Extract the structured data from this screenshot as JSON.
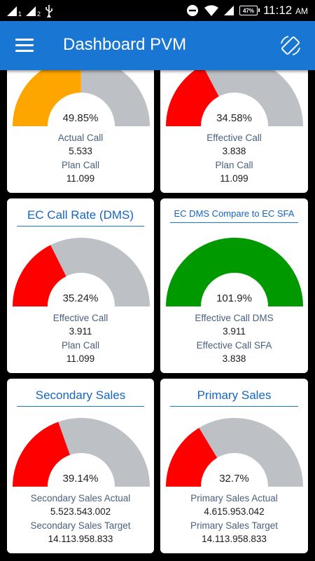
{
  "status_bar": {
    "sim1": "1",
    "sim2": "2",
    "battery": "47%",
    "time": "11:12",
    "ampm": "AM"
  },
  "app_bar": {
    "title": "Dashboard PVM",
    "menu_icon": "hamburger-menu-icon",
    "rotate_icon": "screen-rotation-icon"
  },
  "colors": {
    "app_bar": "#1976d2",
    "orange": "#ffa500",
    "red": "#ff0000",
    "green": "#009900",
    "track": "#bdc0c4"
  },
  "cards": [
    {
      "title": "",
      "percent": "49.85%",
      "ratio": 0.4985,
      "color": "orange",
      "label1": "Actual Call",
      "value1": "5.533",
      "label2": "Plan Call",
      "value2": "11.099"
    },
    {
      "title": "",
      "percent": "34.58%",
      "ratio": 0.3458,
      "color": "red",
      "label1": "Effective Call",
      "value1": "3.838",
      "label2": "Plan Call",
      "value2": "11.099"
    },
    {
      "title": "EC Call Rate (DMS)",
      "percent": "35.24%",
      "ratio": 0.3524,
      "color": "red",
      "label1": "Effective Call",
      "value1": "3.911",
      "label2": "Plan Call",
      "value2": "11.099"
    },
    {
      "title": "EC DMS Compare to EC SFA",
      "percent": "101.9%",
      "ratio": 1.019,
      "color": "green",
      "label1": "Effective Call DMS",
      "value1": "3.911",
      "label2": "Effective Call SFA",
      "value2": "3.838"
    },
    {
      "title": "Secondary Sales",
      "percent": "39.14%",
      "ratio": 0.3914,
      "color": "red",
      "label1": "Secondary Sales Actual",
      "value1": "5.523.543.002",
      "label2": "Secondary Sales Target",
      "value2": "14.113.958.833"
    },
    {
      "title": "Primary Sales",
      "percent": "32.7%",
      "ratio": 0.327,
      "color": "red",
      "label1": "Primary Sales Actual",
      "value1": "4.615.953.042",
      "label2": "Primary Sales Target",
      "value2": "14.113.958.833"
    }
  ]
}
